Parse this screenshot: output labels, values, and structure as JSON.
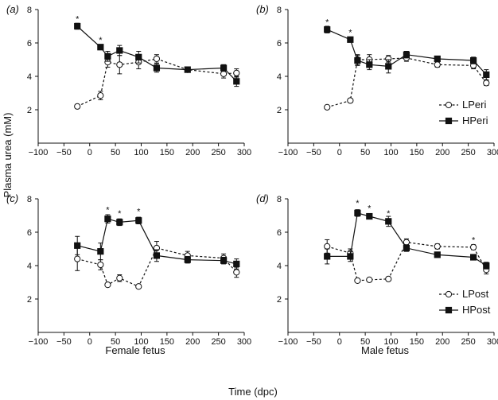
{
  "figure": {
    "ylabel": "Plasma urea (mM)",
    "xlabel": "Time (dpc)",
    "col_labels": [
      "Female fetus",
      "Male fetus"
    ]
  },
  "chart_data": [
    {
      "type": "line",
      "panel_label": "(a)",
      "xlim": [
        -100,
        300
      ],
      "ylim": [
        0,
        8
      ],
      "xticks": [
        -100,
        -50,
        0,
        50,
        100,
        150,
        200,
        250,
        300
      ],
      "yticks": [
        2,
        4,
        6,
        8
      ],
      "legend": null,
      "series": [
        {
          "name": "LPeri",
          "style": "dashed-open",
          "x": [
            -24,
            21,
            35,
            58,
            95,
            130,
            190,
            260,
            285
          ],
          "y": [
            2.2,
            2.85,
            4.85,
            4.7,
            4.85,
            5.05,
            4.4,
            4.15,
            4.2
          ],
          "err": [
            0,
            0.25,
            0.3,
            0.55,
            0.4,
            0.25,
            0.15,
            0.25,
            0.25
          ]
        },
        {
          "name": "HPeri",
          "style": "solid-filled",
          "x": [
            -24,
            21,
            35,
            58,
            95,
            130,
            190,
            260,
            285
          ],
          "y": [
            7.0,
            5.75,
            5.2,
            5.55,
            5.15,
            4.5,
            4.4,
            4.5,
            3.7
          ],
          "err": [
            0.18,
            0.1,
            0.3,
            0.3,
            0.35,
            0.25,
            0.15,
            0.2,
            0.3
          ]
        }
      ],
      "annotations": [
        {
          "x": -24,
          "y": 7.5,
          "text": "*"
        },
        {
          "x": 21,
          "y": 6.25,
          "text": "*"
        }
      ]
    },
    {
      "type": "line",
      "panel_label": "(b)",
      "xlim": [
        -100,
        300
      ],
      "ylim": [
        0,
        8
      ],
      "xticks": [
        -100,
        -50,
        0,
        50,
        100,
        150,
        200,
        250,
        300
      ],
      "yticks": [
        2,
        4,
        6,
        8
      ],
      "legend": {
        "position": "right",
        "entries": [
          "LPeri",
          "HPeri"
        ]
      },
      "series": [
        {
          "name": "LPeri",
          "style": "dashed-open",
          "x": [
            -24,
            21,
            35,
            58,
            95,
            130,
            190,
            260,
            285
          ],
          "y": [
            2.15,
            2.55,
            5.0,
            5.0,
            5.05,
            5.1,
            4.7,
            4.65,
            3.6
          ],
          "err": [
            0,
            0,
            0.3,
            0.3,
            0.2,
            0.2,
            0.15,
            0.2,
            0.15
          ]
        },
        {
          "name": "HPeri",
          "style": "solid-filled",
          "x": [
            -24,
            21,
            35,
            58,
            95,
            130,
            190,
            260,
            285
          ],
          "y": [
            6.8,
            6.2,
            4.95,
            4.7,
            4.6,
            5.3,
            5.05,
            4.95,
            4.1
          ],
          "err": [
            0.2,
            0.1,
            0.3,
            0.3,
            0.4,
            0.2,
            0.15,
            0.2,
            0.3
          ]
        }
      ],
      "annotations": [
        {
          "x": -24,
          "y": 7.3,
          "text": "*"
        },
        {
          "x": 21,
          "y": 6.7,
          "text": "*"
        }
      ]
    },
    {
      "type": "line",
      "panel_label": "(c)",
      "xlim": [
        -100,
        300
      ],
      "ylim": [
        0,
        8
      ],
      "xticks": [
        -100,
        -50,
        0,
        50,
        100,
        150,
        200,
        250,
        300
      ],
      "yticks": [
        2,
        4,
        6,
        8
      ],
      "legend": null,
      "series": [
        {
          "name": "LPost",
          "style": "dashed-open",
          "x": [
            -24,
            21,
            35,
            58,
            95,
            130,
            190,
            260,
            285
          ],
          "y": [
            4.4,
            4.05,
            2.85,
            3.25,
            2.75,
            5.05,
            4.6,
            4.45,
            3.6
          ],
          "err": [
            0.7,
            0.3,
            0,
            0.2,
            0,
            0.4,
            0.25,
            0.25,
            0.3
          ]
        },
        {
          "name": "HPost",
          "style": "solid-filled",
          "x": [
            -24,
            21,
            35,
            58,
            95,
            130,
            190,
            260,
            285
          ],
          "y": [
            5.2,
            4.85,
            6.8,
            6.6,
            6.7,
            4.6,
            4.35,
            4.3,
            4.1
          ],
          "err": [
            0.55,
            0.5,
            0.25,
            0.2,
            0.2,
            0.35,
            0.2,
            0.2,
            0.3
          ]
        }
      ],
      "annotations": [
        {
          "x": 35,
          "y": 7.4,
          "text": "*"
        },
        {
          "x": 58,
          "y": 7.2,
          "text": "*"
        },
        {
          "x": 95,
          "y": 7.3,
          "text": "*"
        }
      ]
    },
    {
      "type": "line",
      "panel_label": "(d)",
      "xlim": [
        -100,
        300
      ],
      "ylim": [
        0,
        8
      ],
      "xticks": [
        -100,
        -50,
        0,
        50,
        100,
        150,
        200,
        250,
        300
      ],
      "yticks": [
        2,
        4,
        6,
        8
      ],
      "legend": {
        "position": "right",
        "entries": [
          "LPost",
          "HPost"
        ]
      },
      "series": [
        {
          "name": "LPost",
          "style": "dashed-open",
          "x": [
            -24,
            21,
            35,
            58,
            95,
            130,
            190,
            260,
            285
          ],
          "y": [
            5.15,
            4.75,
            3.1,
            3.15,
            3.2,
            5.4,
            5.15,
            5.1,
            3.75
          ],
          "err": [
            0.4,
            0.25,
            0,
            0,
            0,
            0.2,
            0.15,
            0.15,
            0.25
          ]
        },
        {
          "name": "HPost",
          "style": "solid-filled",
          "x": [
            -24,
            21,
            35,
            58,
            95,
            130,
            190,
            260,
            285
          ],
          "y": [
            4.55,
            4.55,
            7.15,
            6.95,
            6.65,
            5.05,
            4.65,
            4.5,
            4.0
          ],
          "err": [
            0.45,
            0.3,
            0.2,
            0.15,
            0.3,
            0.2,
            0.15,
            0.15,
            0.2
          ]
        }
      ],
      "annotations": [
        {
          "x": 35,
          "y": 7.8,
          "text": "*"
        },
        {
          "x": 58,
          "y": 7.5,
          "text": "*"
        },
        {
          "x": 95,
          "y": 7.2,
          "text": "*"
        },
        {
          "x": 260,
          "y": 5.6,
          "text": "*"
        }
      ]
    }
  ]
}
